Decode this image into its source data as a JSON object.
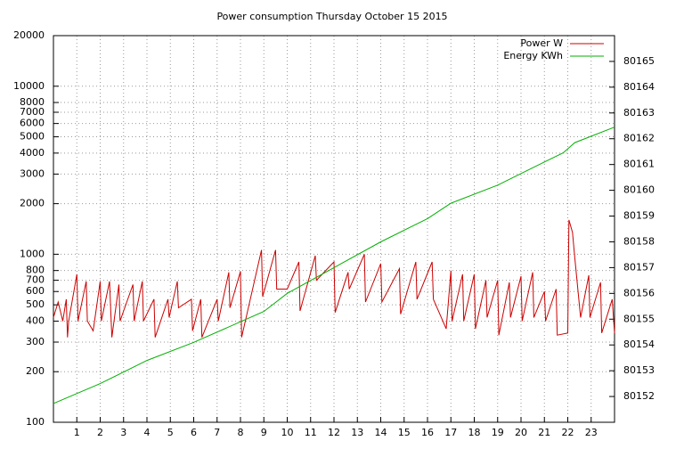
{
  "chart_data": {
    "type": "line",
    "title": "Power consumption Thursday October 15 2015",
    "log_y": true,
    "grid": true,
    "legend": "top-right",
    "xlim": [
      0,
      24
    ],
    "xticks": [
      1,
      2,
      3,
      4,
      5,
      6,
      7,
      8,
      9,
      10,
      11,
      12,
      13,
      14,
      15,
      16,
      17,
      18,
      19,
      20,
      21,
      22,
      23
    ],
    "ylim": [
      100,
      20000
    ],
    "yticks": [
      100,
      200,
      300,
      400,
      500,
      600,
      700,
      800,
      1000,
      2000,
      3000,
      4000,
      5000,
      6000,
      7000,
      8000,
      10000,
      20000
    ],
    "y2lim": [
      80151,
      80166
    ],
    "y2ticks": [
      80152,
      80153,
      80154,
      80155,
      80156,
      80157,
      80158,
      80159,
      80160,
      80161,
      80162,
      80163,
      80164,
      80165
    ],
    "series": [
      {
        "name": "Power W",
        "color": "#cc0000",
        "x": [
          0,
          0.2,
          0.4,
          0.55,
          0.6,
          0.65,
          1.0,
          1.05,
          1.4,
          1.45,
          1.7,
          2.0,
          2.05,
          2.4,
          2.5,
          2.8,
          2.85,
          3.0,
          3.4,
          3.45,
          3.8,
          3.85,
          4.3,
          4.35,
          4.9,
          4.95,
          5.3,
          5.35,
          5.9,
          5.95,
          6.3,
          6.35,
          7.0,
          7.05,
          7.5,
          7.55,
          8.0,
          8.05,
          8.9,
          8.95,
          9.5,
          9.55,
          10.0,
          10.5,
          10.55,
          11.2,
          11.25,
          12.0,
          12.05,
          12.6,
          12.65,
          13.3,
          13.35,
          14.0,
          14.05,
          14.8,
          14.85,
          15.5,
          15.55,
          16.2,
          16.25,
          16.8,
          17.0,
          17.05,
          17.5,
          17.55,
          18.0,
          18.05,
          18.5,
          18.55,
          19.0,
          19.05,
          19.5,
          19.55,
          20.0,
          20.05,
          20.5,
          20.55,
          21.0,
          21.05,
          21.5,
          21.55,
          22.0,
          22.05,
          22.2,
          22.3,
          22.55,
          22.9,
          22.95,
          23.4,
          23.45,
          23.9,
          24
        ],
        "values": [
          420,
          520,
          400,
          540,
          320,
          400,
          760,
          400,
          690,
          400,
          350,
          690,
          400,
          690,
          320,
          660,
          400,
          460,
          660,
          400,
          690,
          400,
          540,
          320,
          540,
          420,
          690,
          480,
          540,
          350,
          540,
          320,
          540,
          400,
          780,
          480,
          790,
          320,
          1060,
          560,
          1060,
          620,
          620,
          900,
          460,
          980,
          700,
          900,
          450,
          780,
          620,
          1000,
          520,
          880,
          520,
          820,
          440,
          900,
          540,
          900,
          540,
          360,
          800,
          400,
          760,
          400,
          760,
          360,
          700,
          420,
          700,
          330,
          680,
          420,
          740,
          400,
          780,
          420,
          600,
          400,
          620,
          330,
          340,
          1600,
          1350,
          950,
          420,
          750,
          420,
          680,
          340,
          540,
          340
        ]
      },
      {
        "name": "Energy KWh",
        "color": "#00b000",
        "axis": "y2",
        "x": [
          0,
          2,
          4,
          6,
          8,
          9,
          10,
          12,
          14,
          16,
          17,
          19,
          21,
          21.8,
          22.3,
          24
        ],
        "values": [
          80151.73,
          80152.5,
          80153.4,
          80154.1,
          80154.9,
          80155.3,
          80156.0,
          80157.0,
          80158.0,
          80158.9,
          80159.5,
          80160.2,
          80161.1,
          80161.45,
          80161.85,
          80162.45
        ]
      }
    ]
  }
}
